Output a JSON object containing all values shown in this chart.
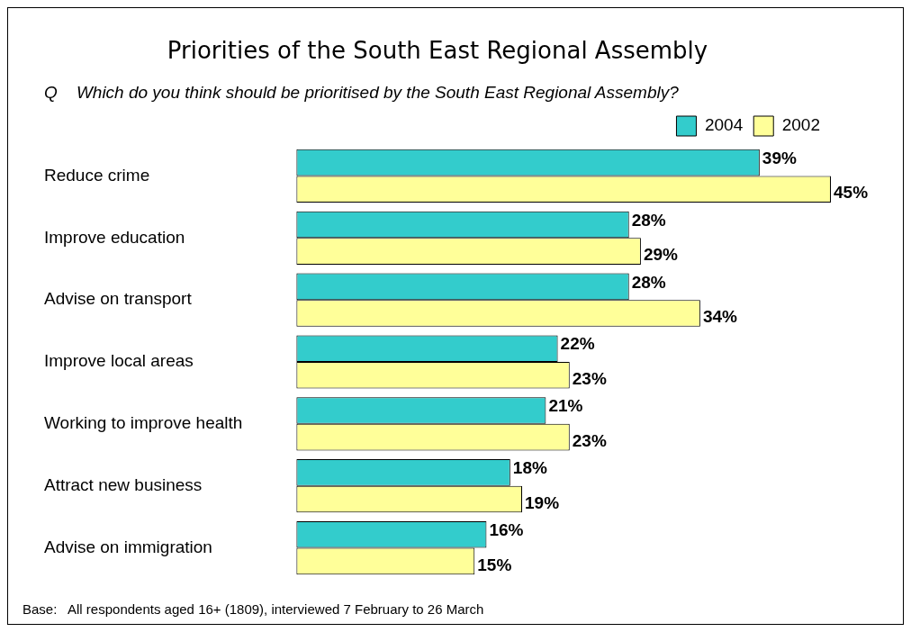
{
  "chart_data": {
    "type": "bar",
    "orientation": "horizontal",
    "title": "Priorities of the South East Regional Assembly",
    "subtitle": "Q    Which do you think should be prioritised by the South East Regional Assembly?",
    "categories": [
      "Reduce crime",
      "Improve education",
      "Advise on transport",
      "Improve local areas",
      "Working to improve health",
      "Attract new business",
      "Advise on immigration"
    ],
    "series": [
      {
        "name": "2004",
        "color": "#33cccc",
        "values": [
          39,
          28,
          28,
          22,
          21,
          18,
          16
        ],
        "value_labels": [
          "39%",
          "28%",
          "28%",
          "22%",
          "21%",
          "18%",
          "16%"
        ]
      },
      {
        "name": "2002",
        "color": "#ffff99",
        "values": [
          45,
          29,
          34,
          23,
          23,
          19,
          15
        ],
        "value_labels": [
          "45%",
          "29%",
          "34%",
          "23%",
          "23%",
          "19%",
          "15%"
        ]
      }
    ],
    "legend": "top right",
    "annotations": [
      "Base:   All respondents aged 16+ (1809), interviewed 7 February to 26 March"
    ]
  }
}
